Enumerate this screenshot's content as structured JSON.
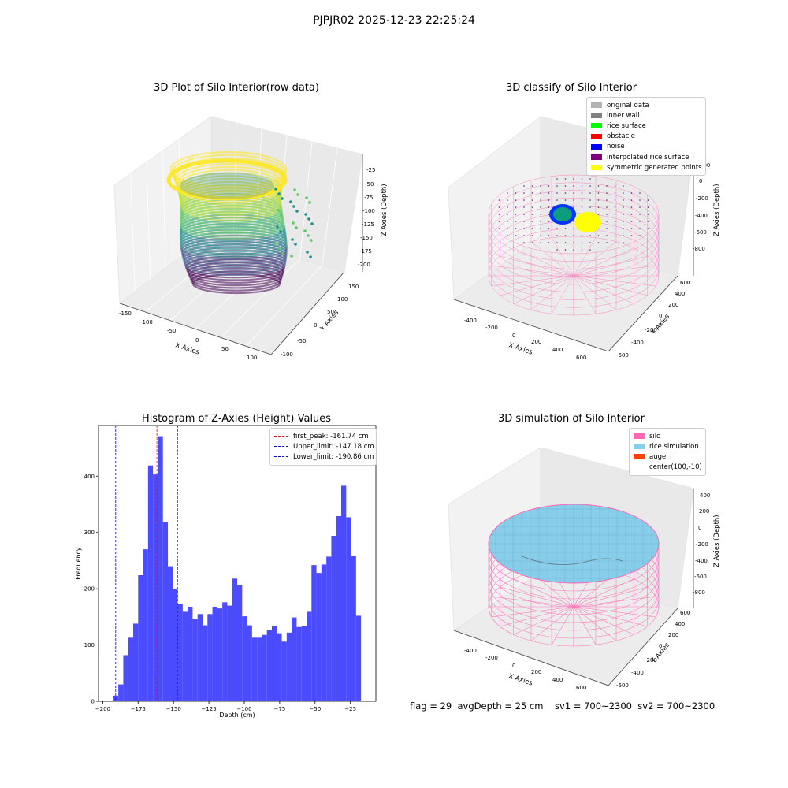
{
  "suptitle": "PJPJR02 2025-12-23 22:25:24",
  "panels": {
    "raw": {
      "title": "3D Plot of Silo Interior(row data)",
      "xlabel": "X Axies",
      "ylabel": "Y Axies",
      "zlabel": "Z Axies (Depth)",
      "xticks": [
        "-150",
        "-100",
        "-50",
        "0",
        "50",
        "100"
      ],
      "yticks": [
        "-100",
        "-50",
        "0",
        "50",
        "100",
        "150"
      ],
      "zticks": [
        "-25",
        "-50",
        "-75",
        "-100",
        "-125",
        "-150",
        "-175",
        "-200"
      ]
    },
    "classify": {
      "title": "3D classify of Silo Interior",
      "xlabel": "X Axies",
      "ylabel": "Y Axies",
      "zlabel": "Z Axies (Depth)",
      "xticks": [
        "-400",
        "-200",
        "0",
        "200",
        "400",
        "600"
      ],
      "yticks": [
        "-600",
        "-400",
        "-200",
        "0",
        "200",
        "400",
        "600"
      ],
      "zticks": [
        "200",
        "0",
        "-200",
        "-400",
        "-600",
        "-800"
      ],
      "legend": [
        {
          "label": "original data",
          "color": "#b3b3b3"
        },
        {
          "label": "inner wall",
          "color": "#808080"
        },
        {
          "label": "rice surface",
          "color": "#00ff00"
        },
        {
          "label": "obstacle",
          "color": "#ff0000"
        },
        {
          "label": "noise",
          "color": "#0000ff"
        },
        {
          "label": "interpolated rice surface",
          "color": "#800080"
        },
        {
          "label": "symmetric generated points",
          "color": "#ffff00"
        }
      ]
    },
    "simulation": {
      "title": "3D simulation of Silo Interior",
      "xlabel": "X Axies",
      "ylabel": "Y Axies",
      "zlabel": "Z Axies (Depth)",
      "xticks": [
        "-400",
        "-200",
        "0",
        "200",
        "400",
        "600"
      ],
      "yticks": [
        "-600",
        "-400",
        "-200",
        "0",
        "200",
        "400",
        "600"
      ],
      "zticks": [
        "400",
        "200",
        "0",
        "-200",
        "-400",
        "-600",
        "-800"
      ],
      "legend": [
        {
          "label": "silo",
          "color": "#ff69b4"
        },
        {
          "label": "rice simulation",
          "color": "#87ceeb"
        },
        {
          "label": "auger",
          "color": "#ff4500"
        },
        {
          "label": "center(100,-10)",
          "color": ""
        }
      ]
    }
  },
  "footer": "flag = 29  avgDepth = 25 cm    sv1 = 700~2300  sv2 = 700~2300",
  "chart_data": {
    "type": "bar",
    "title": "Histogram of Z-Axies (Height) Values",
    "xlabel": "Depth (cm)",
    "ylabel": "Frequency",
    "xlim": [
      -203,
      -7
    ],
    "ylim": [
      0,
      490
    ],
    "xticks": [
      -200,
      -175,
      -150,
      -125,
      -100,
      -75,
      -50,
      -25
    ],
    "yticks": [
      0,
      100,
      200,
      300,
      400
    ],
    "bin_start": -192.5,
    "bin_width": 3.5,
    "color": "#4b4bff",
    "values": [
      10,
      30,
      82,
      113,
      138,
      224,
      270,
      419,
      403,
      471,
      318,
      240,
      199,
      173,
      159,
      168,
      147,
      155,
      135,
      155,
      168,
      165,
      176,
      170,
      218,
      206,
      151,
      135,
      113,
      113,
      118,
      126,
      134,
      121,
      106,
      122,
      149,
      132,
      133,
      159,
      242,
      228,
      243,
      257,
      294,
      329,
      383,
      327,
      258,
      152
    ],
    "vlines": [
      {
        "label": "first_peak: -161.74 cm",
        "x": -161.74,
        "color": "#ff0000"
      },
      {
        "label": "Upper_limit: -147.18 cm",
        "x": -147.18,
        "color": "#0000ff"
      },
      {
        "label": "Lower_limit: -190.86 cm",
        "x": -190.86,
        "color": "#0000ff"
      }
    ]
  }
}
